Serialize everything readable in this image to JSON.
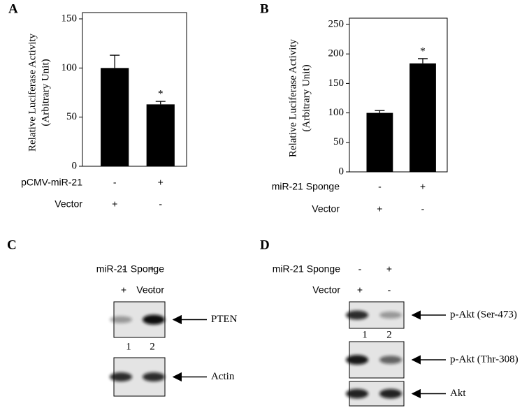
{
  "chart_data": [
    {
      "type": "bar",
      "panel": "A",
      "ylabel": [
        "Relative Luciferase Activity",
        "(Arbitrary Unit)"
      ],
      "values": [
        100,
        63
      ],
      "errors": [
        13,
        3
      ],
      "value_annotations": [
        null,
        "*"
      ],
      "color": "#000000",
      "ylim": [
        0,
        150
      ],
      "yticks": [
        0,
        50,
        100,
        150
      ],
      "condition_rows": [
        {
          "label": "pCMV-miR-21",
          "values": [
            "-",
            "+"
          ]
        },
        {
          "label": "Vector",
          "values": [
            "+",
            "-"
          ]
        }
      ]
    },
    {
      "type": "bar",
      "panel": "B",
      "ylabel": [
        "Relative Luciferase Activity",
        "(Arbitrary Unit)"
      ],
      "values": [
        100,
        184
      ],
      "errors": [
        4,
        8
      ],
      "value_annotations": [
        null,
        "*"
      ],
      "color": "#000000",
      "ylim": [
        0,
        250
      ],
      "yticks": [
        0,
        50,
        100,
        150,
        200,
        250
      ],
      "condition_rows": [
        {
          "label": "miR-21 Sponge",
          "values": [
            "-",
            "+"
          ]
        },
        {
          "label": "Vector",
          "values": [
            "+",
            "-"
          ]
        }
      ]
    }
  ],
  "blots": [
    {
      "panel": "C",
      "condition_rows": [
        {
          "label": "miR-21 Sponge",
          "values": [
            "-",
            "+"
          ]
        },
        {
          "label": "Vector",
          "values": [
            "+",
            "-"
          ]
        }
      ],
      "bands": [
        {
          "label": "PTEN",
          "lane_numbers": [
            "1",
            "2"
          ]
        },
        {
          "label": "Actin"
        }
      ]
    },
    {
      "panel": "D",
      "condition_rows": [
        {
          "label": "miR-21 Sponge",
          "values": [
            "-",
            "+"
          ]
        },
        {
          "label": "Vector",
          "values": [
            "+",
            "-"
          ]
        }
      ],
      "bands": [
        {
          "label": "p-Akt (Ser-473)",
          "lane_numbers": [
            "1",
            "2"
          ]
        },
        {
          "label": "p-Akt (Thr-308)"
        },
        {
          "label": "Akt"
        }
      ]
    }
  ]
}
